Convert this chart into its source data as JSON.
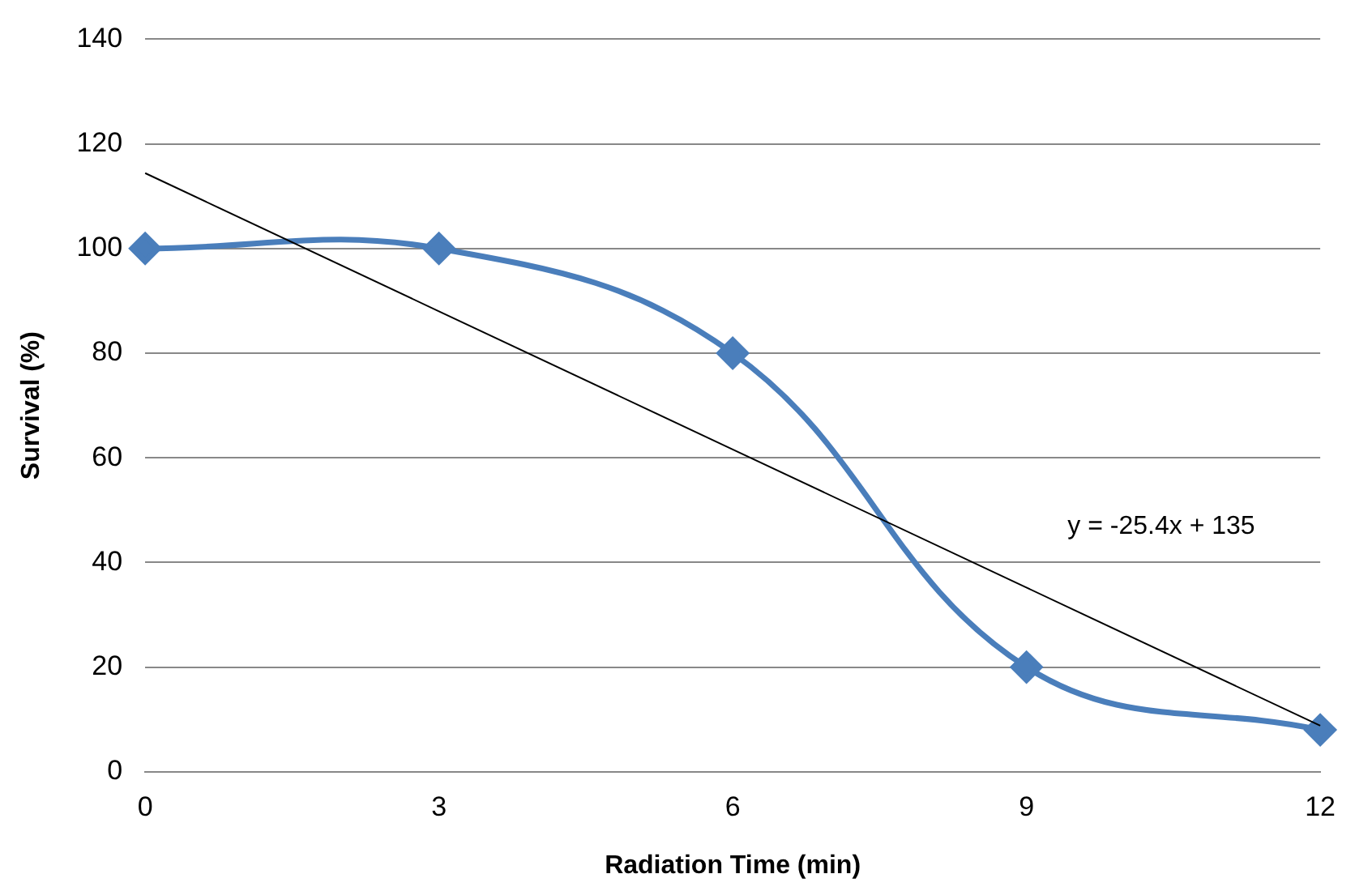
{
  "chart_data": {
    "type": "line",
    "xlabel": "Radiation Time (min)",
    "ylabel": "Survival (%)",
    "categories": [
      "0",
      "3",
      "6",
      "9",
      "12"
    ],
    "series": [
      {
        "type": "line",
        "color": "#4a7ebb",
        "values": [
          100,
          100,
          80,
          20,
          8
        ],
        "marker": "diamond",
        "line_style": "solid"
      },
      {
        "type": "line",
        "color": "#000000",
        "values": [
          114.4,
          88,
          61.6,
          35.2,
          8.8
        ],
        "marker": "none",
        "line_style": "solid"
      }
    ],
    "ylim": [
      0,
      140
    ],
    "yticks": [
      0,
      20,
      40,
      60,
      80,
      100,
      120,
      140
    ],
    "grid": "y",
    "legend": false,
    "annotations": [
      "y = -25.4x + 135"
    ]
  }
}
